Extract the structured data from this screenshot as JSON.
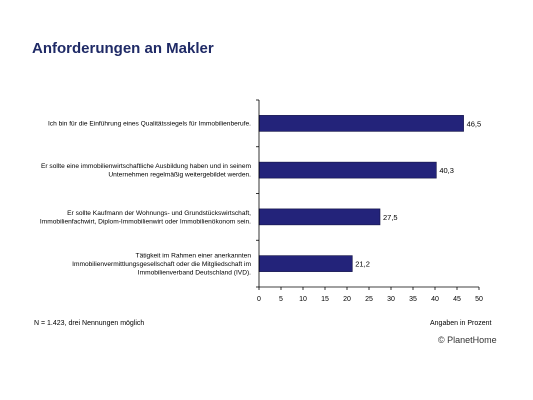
{
  "chart_data": {
    "type": "bar",
    "orientation": "horizontal",
    "title": "Anforderungen an Makler",
    "categories": [
      [
        "Ich bin für die Einführung eines Qualitätssiegels für Immobilienberufe."
      ],
      [
        "Er sollte eine immobilienwirtschaftliche Ausbildung haben und in seinem",
        "Unternehmen regelmäßig weitergebildet werden."
      ],
      [
        "Er sollte Kaufmann der Wohnungs- und Grundstückswirtschaft,",
        "Immobilienfachwirt, Diplom-Immobilienwirt oder Immobilienökonom sein."
      ],
      [
        "Tätigkeit im Rahmen einer anerkannten",
        "Immobilienvermittlungsgesellschaft oder die Mitgliedschaft im",
        "Immobilienverband Deutschland (IVD)."
      ]
    ],
    "values": [
      46.5,
      40.3,
      27.5,
      21.2
    ],
    "value_labels": [
      "46,5",
      "40,3",
      "27,5",
      "21,2"
    ],
    "xlim": [
      0,
      50
    ],
    "xticks": [
      0,
      5,
      10,
      15,
      20,
      25,
      30,
      35,
      40,
      45,
      50
    ],
    "xlabel": "Angaben in Prozent",
    "bar_color": "#23237a",
    "grid": false
  },
  "footnote": "N = 1.423, drei Nennungen möglich",
  "unit_note": "Angaben in Prozent",
  "copyright": "© PlanetHome"
}
